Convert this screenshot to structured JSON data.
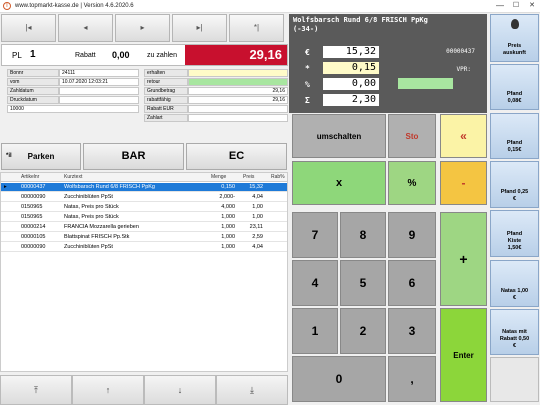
{
  "titlebar": {
    "title": "www.topmarkt-kasse.de | Version 4.6.2020.6",
    "minimize": "—",
    "maximize": "☐",
    "close": "✕"
  },
  "nav": {
    "first": "|◂",
    "prev": "◂",
    "next": "▸",
    "last": "▸|",
    "last2": "*|"
  },
  "pl": {
    "label": "PL",
    "value": "1",
    "rabatt_label": "Rabatt",
    "rabatt_value": "0,00",
    "zahlen_label": "zu zahlen",
    "zahlen_value": "29,16"
  },
  "info": {
    "bonnr_label": "Bonnr",
    "bonnr": "24111",
    "vom_label": "vom",
    "vom": "10.07.2020 12:03:21",
    "zahldatum_label": "Zahldatum",
    "zahldatum": "",
    "druckdatum_label": "Druckdatum",
    "druckdatum": "",
    "kunde": "10000",
    "erhalten_label": "erhalten",
    "erhalten": "",
    "retour_label": "retour",
    "retour": "",
    "grundbetrag_label": "Grundbetrag",
    "grundbetrag": "29,16",
    "rabattfaehig_label": "rabattfähig",
    "rabattfaehig": "29,16",
    "rabatt_eur_label": "Rabatt EUR",
    "rabatt_eur": "",
    "zahlart_label": "Zahlart",
    "zahlart": ""
  },
  "actions": {
    "park_icon": "*il",
    "parken": "Parken",
    "bar": "BAR",
    "ec": "EC"
  },
  "table": {
    "headers": [
      "Artikelnr",
      "Kurztext",
      "Menge",
      "Preis",
      "Rab%"
    ],
    "rows": [
      [
        "00000437",
        "Wolfsbarsch Rund 6/8 FRISCH PpKg",
        "0,150",
        "15,32",
        ""
      ],
      [
        "00000090",
        "Zucchiniblüten PpSt",
        "2,000-",
        "4,04",
        ""
      ],
      [
        "0150965",
        "Natas, Preis pro Stück",
        "4,000",
        "1,00",
        ""
      ],
      [
        "0150965",
        "Natas, Preis pro Stück",
        "1,000",
        "1,00",
        ""
      ],
      [
        "00000214",
        "FRANCIA Mozzarella gerieben",
        "1,000",
        "23,11",
        ""
      ],
      [
        "00000105",
        "Blattspinat FRISCH Pp.Stk",
        "1,000",
        "2,59",
        ""
      ],
      [
        "00000090",
        "Zucchiniblüten PpSt",
        "1,000",
        "4,04",
        ""
      ]
    ],
    "selected_row": 0
  },
  "scroll": {
    "top": "⤒",
    "up": "↑",
    "down": "↓",
    "bottom": "⤓"
  },
  "display": {
    "article_line1": "Wolfsbarsch Rund 6/8 FRISCH PpKg",
    "article_line2": "(-34-)",
    "euro_sym": "€",
    "euro_val": "15,32",
    "mult_sym": "*",
    "mult_val": "0,15",
    "pct_sym": "%",
    "pct_val": "0,00",
    "sum_sym": "Σ",
    "sum_val": "2,30",
    "artnr": "00000437",
    "vpr_label": "VPR:"
  },
  "keypad": {
    "umschalten": "umschalten",
    "sto": "Sto",
    "back": "«",
    "mult": "x",
    "pct": "%",
    "minus": "-",
    "k7": "7",
    "k8": "8",
    "k9": "9",
    "k4": "4",
    "k5": "5",
    "k6": "6",
    "k1": "1",
    "k2": "2",
    "k3": "3",
    "k0": "0",
    "komma": ",",
    "plus": "+",
    "enter": "Enter"
  },
  "sidebar": {
    "preis_auskunft": "Preis auskunft",
    "pfand_008": "Pfand 0,08€",
    "pfand_015": "Pfand 0,15€",
    "pfand_025": "Pfand 0,25 €",
    "pfand_kiste": "Pfand Kiste 1,50€",
    "natas": "Natas 1,00 €",
    "natas_rabatt": "Natas mit Rabatt 0,50 €"
  },
  "colors": {
    "total_bg": "#c8102e",
    "selected_row": "#1e7ad8",
    "display_bg": "#5a5a5a"
  }
}
